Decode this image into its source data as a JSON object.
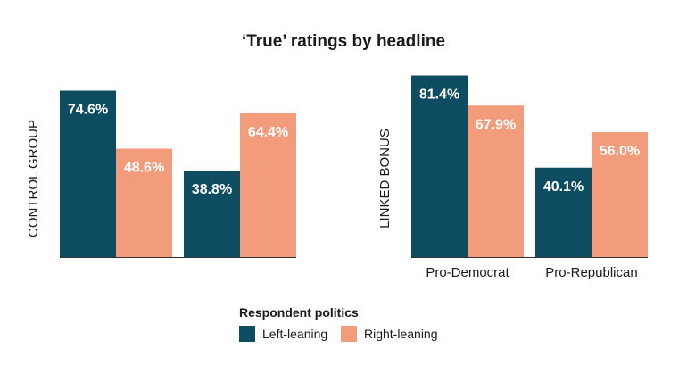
{
  "chart_data": {
    "type": "bar",
    "title": "‘True’ ratings by headline",
    "categories": [
      "Pro-Democrat",
      "Pro-Republican"
    ],
    "legend": {
      "title": "Respondent politics",
      "placement": "bottom-center",
      "items": [
        {
          "label": "Left-leaning",
          "color": "#0e4c62"
        },
        {
          "label": "Right-leaning",
          "color": "#f39c7b"
        }
      ]
    },
    "panels": [
      {
        "ylabel": "CONTROL GROUP",
        "series": [
          {
            "name": "Left-leaning",
            "values": [
              74.6,
              38.8
            ]
          },
          {
            "name": "Right-leaning",
            "values": [
              48.6,
              64.4
            ]
          }
        ]
      },
      {
        "ylabel": "LINKED BONUS",
        "series": [
          {
            "name": "Left-leaning",
            "values": [
              81.4,
              40.1
            ]
          },
          {
            "name": "Right-leaning",
            "values": [
              67.9,
              56.0
            ]
          }
        ]
      }
    ],
    "value_suffix": "%",
    "ylim": [
      0,
      100
    ],
    "grid": false
  }
}
